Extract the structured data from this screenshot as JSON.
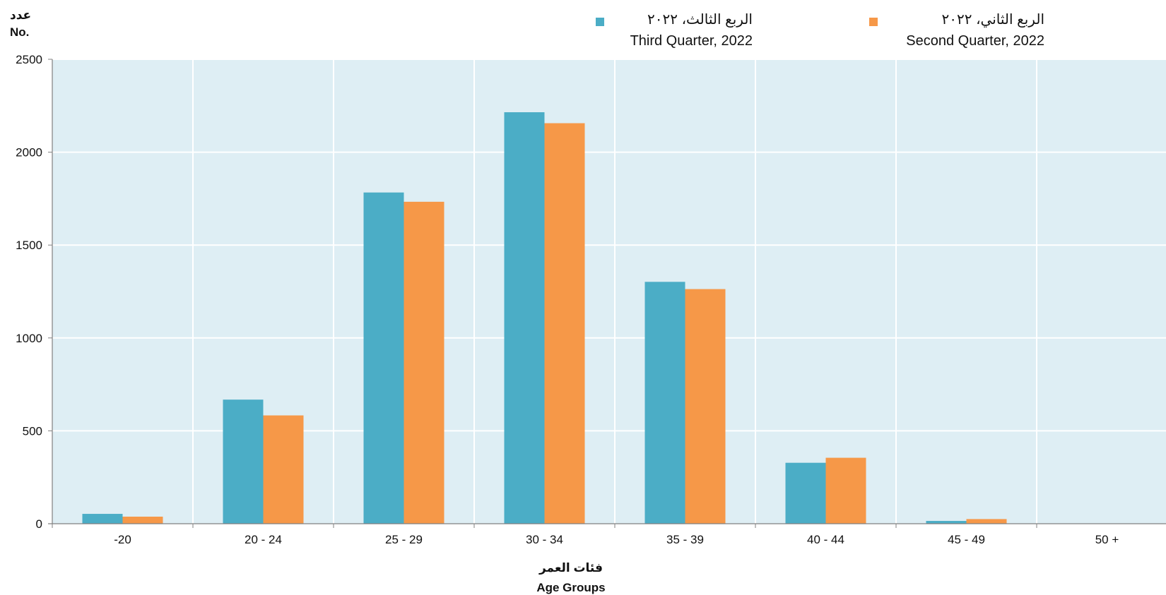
{
  "colors": {
    "plot_background": "#deeef4",
    "grid": "#ffffff",
    "axis": "#808080",
    "series_teal": "#4badc6",
    "series_orange": "#f69848"
  },
  "y_unit": {
    "ar": "عدد",
    "en": "No."
  },
  "x_title": {
    "ar": "فئات العمر",
    "en": "Age Groups"
  },
  "legend": [
    {
      "ar": "الربع الثالث، ٢٠٢٢",
      "en": "Third Quarter, 2022",
      "color": "#4badc6"
    },
    {
      "ar": "الربع الثاني، ٢٠٢٢",
      "en": "Second Quarter, 2022",
      "color": "#f69848"
    }
  ],
  "chart_data": {
    "type": "bar",
    "categories": [
      "-20",
      "20 - 24",
      "25 - 29",
      "30 - 34",
      "35 - 39",
      "40 - 44",
      "45 - 49",
      "50 +"
    ],
    "series": [
      {
        "name": "Third Quarter, 2022",
        "values": [
          53,
          668,
          1783,
          2215,
          1302,
          328,
          15,
          0
        ]
      },
      {
        "name": "Second Quarter, 2022",
        "values": [
          38,
          583,
          1733,
          2156,
          1263,
          355,
          25,
          0
        ]
      }
    ],
    "ylim": [
      0,
      2500
    ],
    "yticks": [
      "0",
      "500",
      "1000",
      "1500",
      "2000",
      "2500"
    ],
    "grid": true,
    "legend_position": "top-right"
  }
}
